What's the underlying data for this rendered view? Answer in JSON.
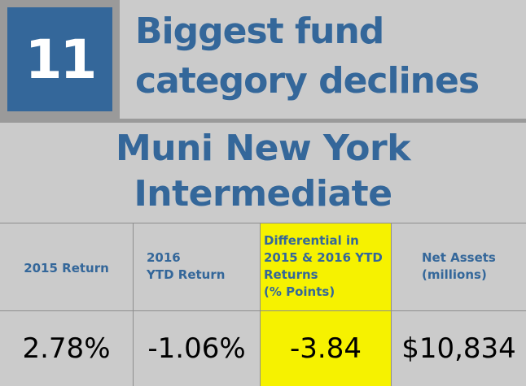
{
  "header": {
    "rank": "11",
    "title": "Biggest fund\ncategory declines"
  },
  "subtitle": "Muni New York\nIntermediate",
  "table": {
    "columns": [
      {
        "header": "2015 Return",
        "value": "2.78%"
      },
      {
        "header": "2016\nYTD Return",
        "value": "-1.06%"
      },
      {
        "header": "Differential in\n2015 & 2016 YTD\nReturns\n(% Points)",
        "value": "-3.84"
      },
      {
        "header": "Net Assets\n(millions)",
        "value": "$10,834"
      }
    ]
  },
  "colors": {
    "brand_blue": "#34679a",
    "highlight_yellow": "#f6f200",
    "background_gray": "#cbcbcb"
  }
}
